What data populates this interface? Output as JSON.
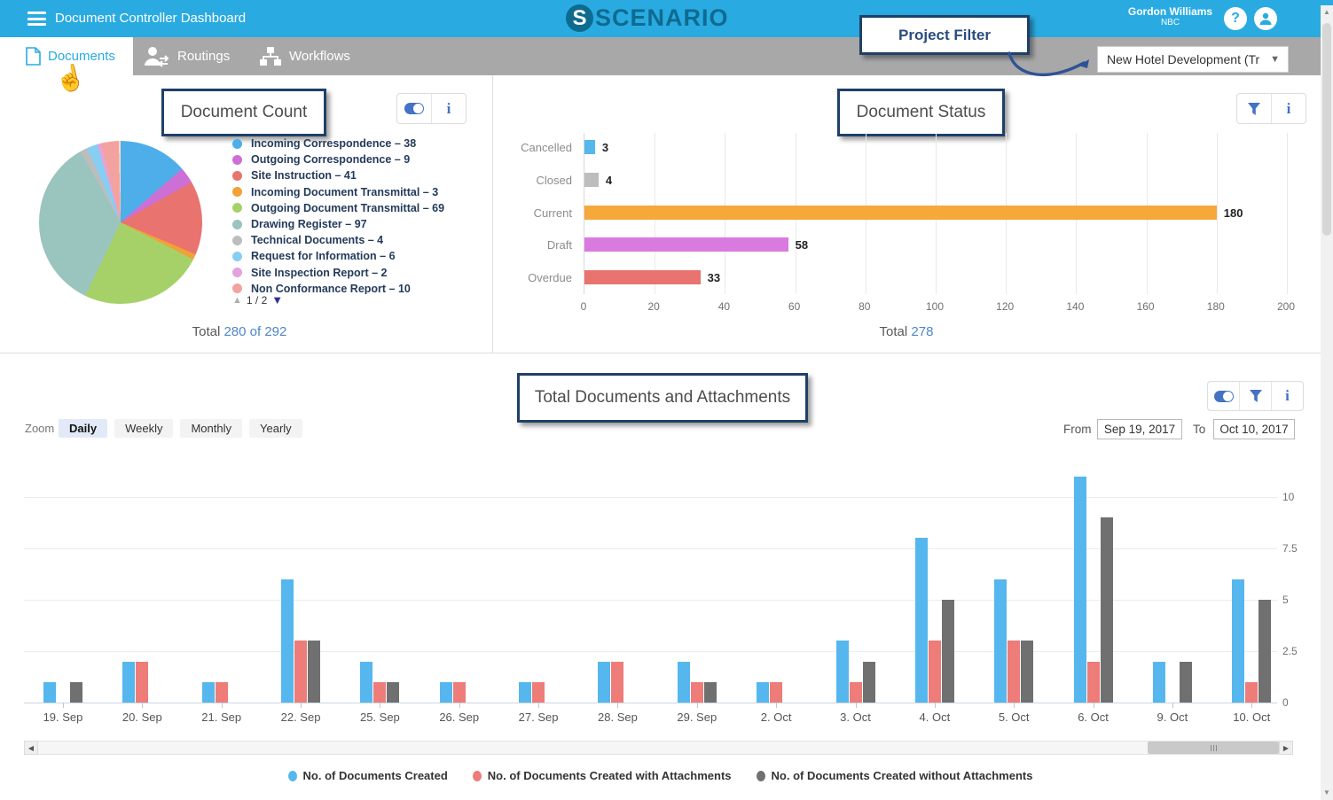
{
  "topbar": {
    "title": "Document Controller Dashboard",
    "logo_text": "SCENARIO",
    "logo_mark": "S",
    "user_name": "Gordon Williams",
    "user_org": "NBC",
    "help_icon": "?",
    "accent_color": "#29ABE2"
  },
  "tabs": [
    {
      "label": "Documents",
      "active": true
    },
    {
      "label": "Routings",
      "active": false
    },
    {
      "label": "Workflows",
      "active": false
    }
  ],
  "project_filter": {
    "callout": "Project Filter",
    "selected": "New Hotel Development (Tr"
  },
  "document_count": {
    "title": "Document Count",
    "pagination": "1 / 2",
    "total_label": "Total",
    "total_value": "280 of 292"
  },
  "document_status": {
    "title": "Document Status",
    "total_label": "Total",
    "total_value": "278"
  },
  "timeline": {
    "title": "Total Documents and Attachments",
    "zoom_label": "Zoom",
    "zoom_options": [
      "Daily",
      "Weekly",
      "Monthly",
      "Yearly"
    ],
    "zoom_selected": "Daily",
    "from_label": "From",
    "from_value": "Sep 19, 2017",
    "to_label": "To",
    "to_value": "Oct 10, 2017"
  },
  "chart_data": [
    {
      "panel": "document_count",
      "type": "pie",
      "title": "Document Count",
      "slices": [
        {
          "label": "Incoming Correspondence",
          "value": 38,
          "color": "#4DAEEA"
        },
        {
          "label": "Outgoing Correspondence",
          "value": 9,
          "color": "#CC70D6"
        },
        {
          "label": "Site Instruction",
          "value": 41,
          "color": "#E8736F"
        },
        {
          "label": "Incoming Document Transmittal",
          "value": 3,
          "color": "#F2A136"
        },
        {
          "label": "Outgoing Document Transmittal",
          "value": 69,
          "color": "#A6D168"
        },
        {
          "label": "Drawing Register",
          "value": 97,
          "color": "#9AC4BE"
        },
        {
          "label": "Technical Documents",
          "value": 4,
          "color": "#BDBDBD"
        },
        {
          "label": "Request for Information",
          "value": 6,
          "color": "#86CFF2"
        },
        {
          "label": "Site Inspection Report",
          "value": 2,
          "color": "#E2A3DF"
        },
        {
          "label": "Non Conformance Report",
          "value": 10,
          "color": "#F2A3A0"
        },
        {
          "label": "",
          "value": 1,
          "color": "#F8DCCB"
        }
      ],
      "legend_position": "right"
    },
    {
      "panel": "document_status",
      "type": "bar",
      "orientation": "horizontal",
      "title": "Document Status",
      "categories": [
        "Cancelled",
        "Closed",
        "Current",
        "Draft",
        "Overdue"
      ],
      "values": [
        3,
        4,
        180,
        58,
        33
      ],
      "colors": [
        "#55B8EA",
        "#BDBDBD",
        "#F6A83B",
        "#D97ADF",
        "#E8736F"
      ],
      "xlim": [
        0,
        200
      ],
      "xtick_step": 20,
      "grid": true
    },
    {
      "panel": "timeline",
      "type": "bar",
      "orientation": "vertical",
      "title": "Total Documents and Attachments",
      "categories": [
        "19. Sep",
        "20. Sep",
        "21. Sep",
        "22. Sep",
        "25. Sep",
        "26. Sep",
        "27. Sep",
        "28. Sep",
        "29. Sep",
        "2. Oct",
        "3. Oct",
        "4. Oct",
        "5. Oct",
        "6. Oct",
        "9. Oct",
        "10. Oct"
      ],
      "series": [
        {
          "name": "No. of Documents Created",
          "color": "#55B7EE",
          "values": [
            1,
            2,
            1,
            6,
            2,
            1,
            1,
            2,
            2,
            1,
            3,
            8,
            6,
            11,
            2,
            6
          ]
        },
        {
          "name": "No. of Documents Created with Attachments",
          "color": "#EE7C78",
          "values": [
            0,
            2,
            1,
            3,
            1,
            1,
            1,
            2,
            1,
            1,
            1,
            3,
            3,
            2,
            0,
            1
          ]
        },
        {
          "name": "No. of Documents Created without Attachments",
          "color": "#707070",
          "values": [
            1,
            0,
            0,
            3,
            1,
            0,
            0,
            0,
            1,
            0,
            2,
            5,
            3,
            9,
            2,
            5
          ]
        }
      ],
      "ylim": [
        0,
        10
      ],
      "yticks": [
        0,
        2.5,
        5,
        7.5,
        10
      ],
      "grid": true,
      "legend_position": "bottom"
    }
  ]
}
